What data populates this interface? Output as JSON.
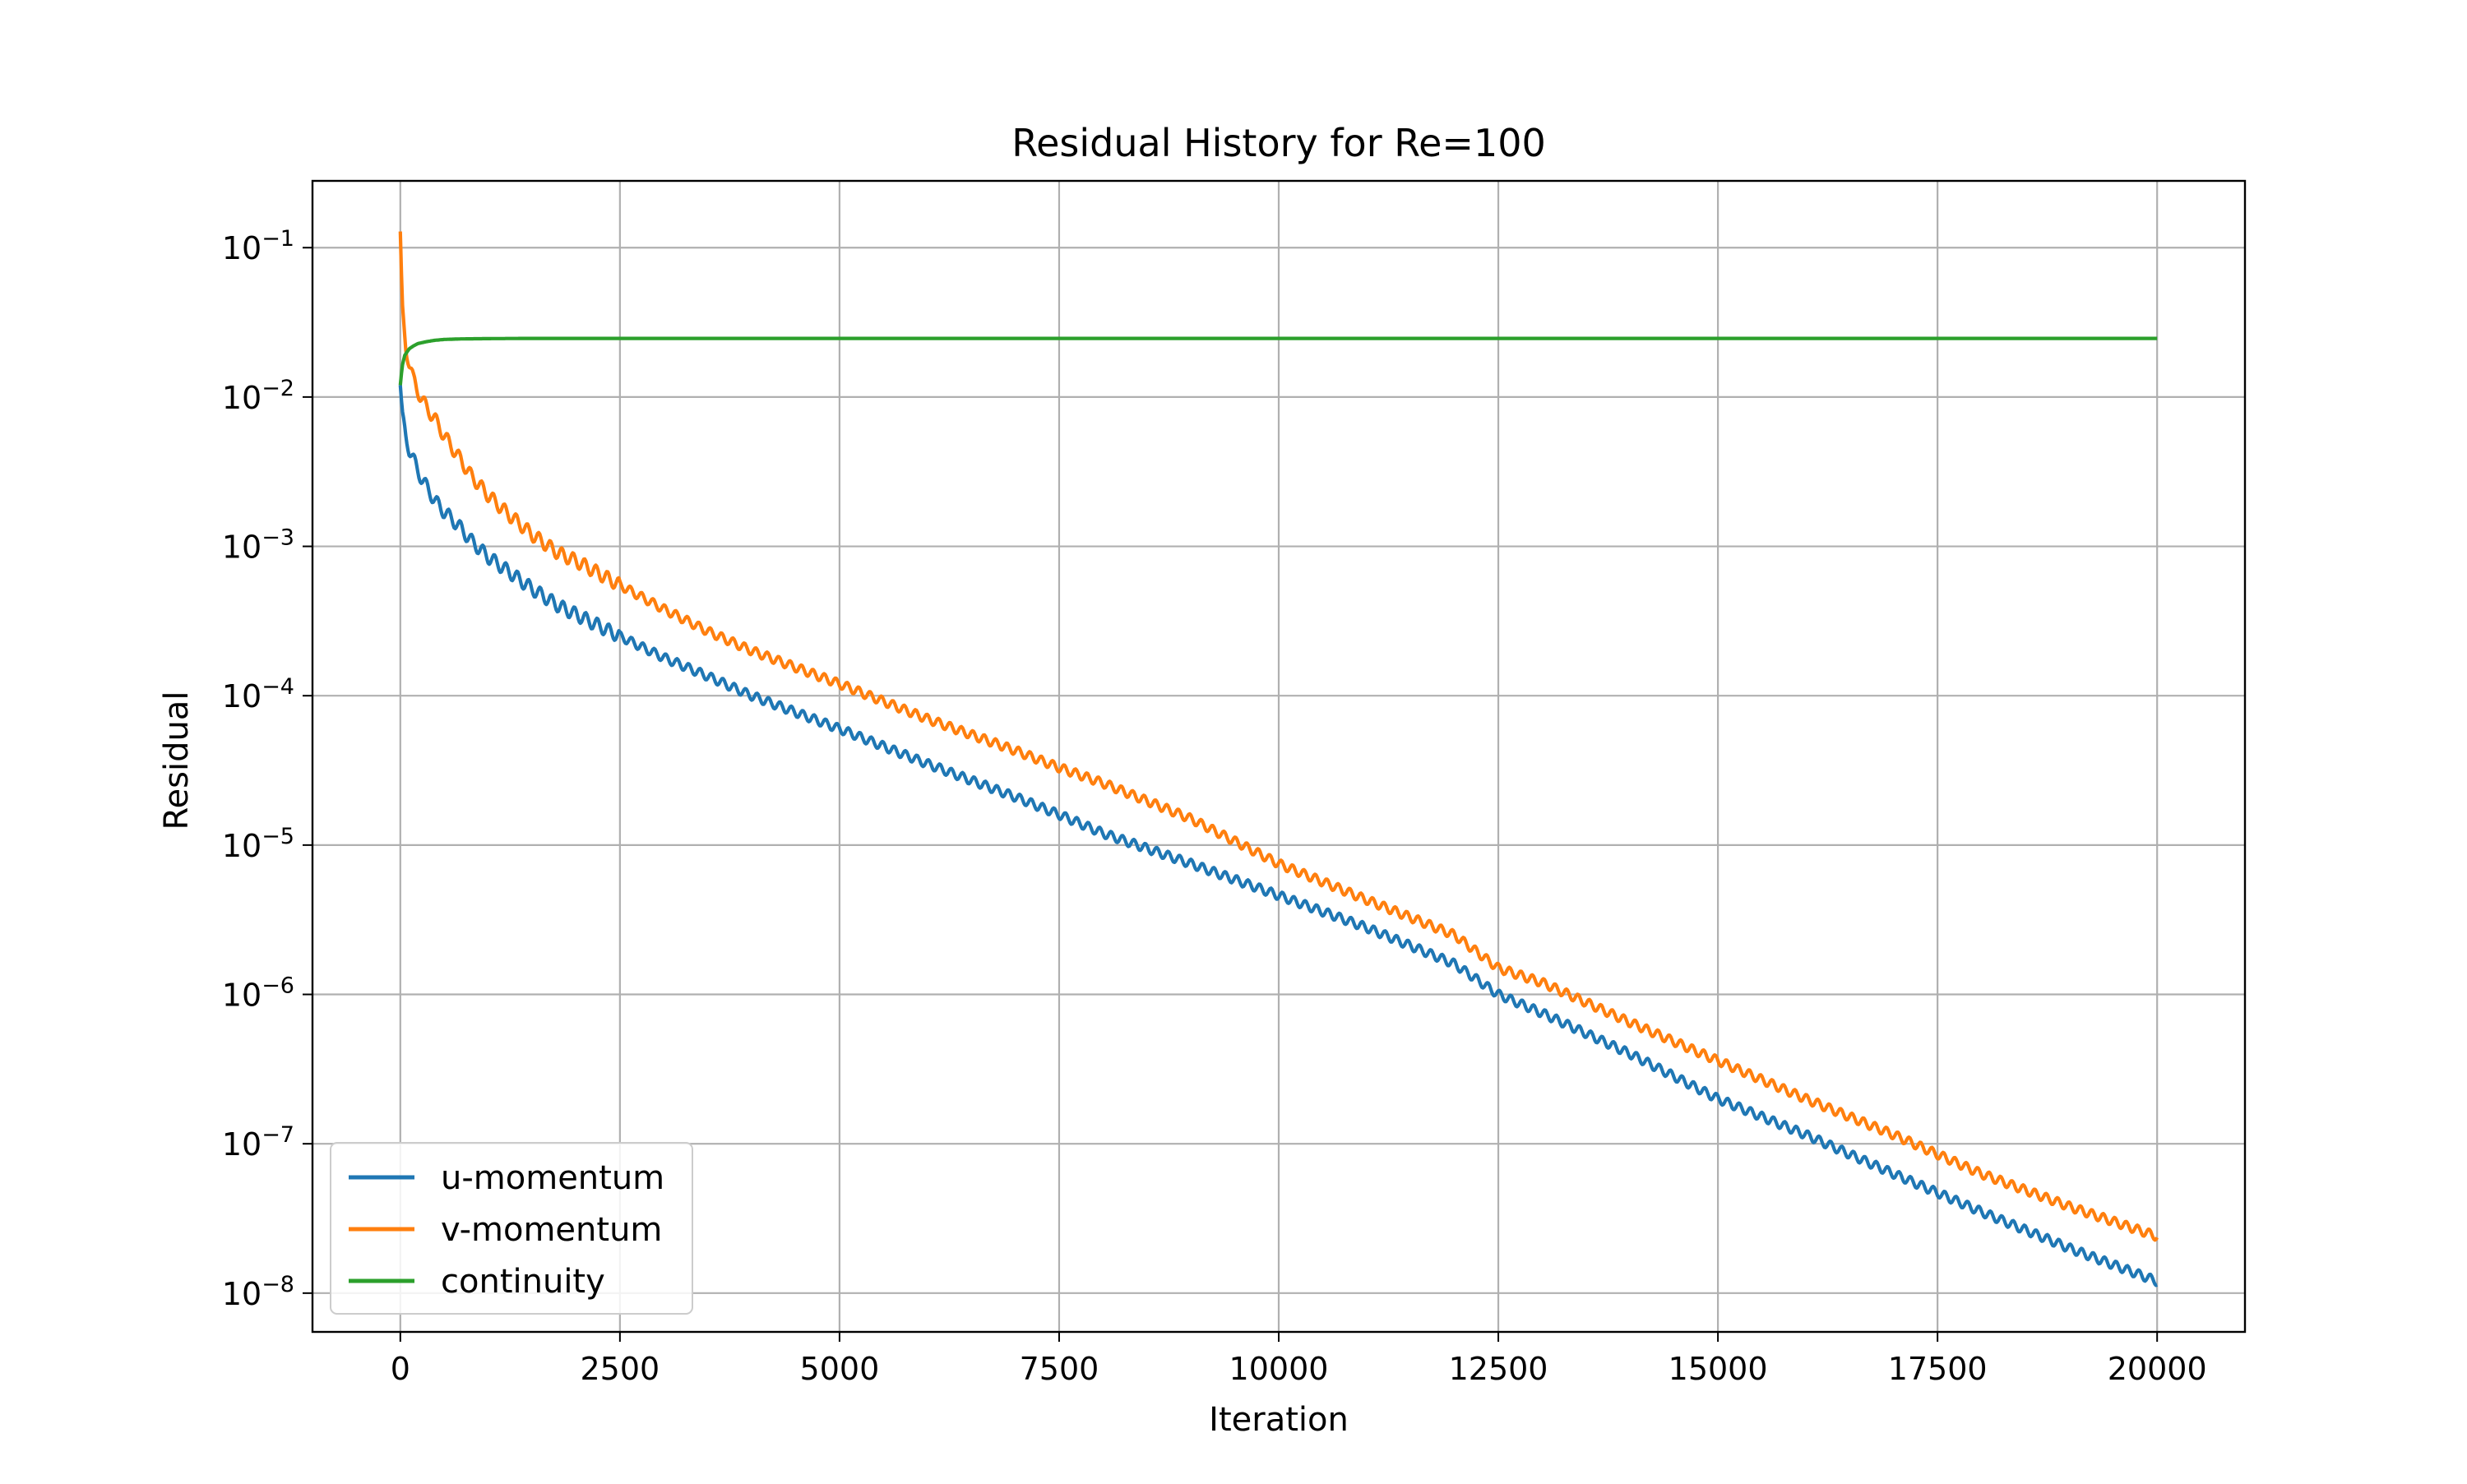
{
  "chart_data": {
    "type": "line",
    "title": "Residual History for Re=100",
    "xlabel": "Iteration",
    "ylabel": "Residual",
    "xlim": [
      -1000,
      21000
    ],
    "ylim": [
      5.5e-09,
      0.28
    ],
    "yscale": "log",
    "grid": true,
    "legend_position": "lower-left",
    "x_ticks": [
      0,
      2500,
      5000,
      7500,
      10000,
      12500,
      15000,
      17500,
      20000
    ],
    "x_tick_labels": [
      "0",
      "2500",
      "5000",
      "7500",
      "10000",
      "12500",
      "15000",
      "17500",
      "20000"
    ],
    "y_ticks": [
      0.1,
      0.01,
      0.001,
      0.0001,
      1e-05,
      1e-06,
      1e-07,
      1e-08
    ],
    "y_tick_labels": [
      {
        "base": "10",
        "exp": "−1"
      },
      {
        "base": "10",
        "exp": "−2"
      },
      {
        "base": "10",
        "exp": "−3"
      },
      {
        "base": "10",
        "exp": "−4"
      },
      {
        "base": "10",
        "exp": "−5"
      },
      {
        "base": "10",
        "exp": "−6"
      },
      {
        "base": "10",
        "exp": "−7"
      },
      {
        "base": "10",
        "exp": "−8"
      }
    ],
    "series": [
      {
        "name": "u-momentum",
        "color": "#1f77b4",
        "x": [
          0,
          20,
          60,
          100,
          150,
          200,
          250,
          300,
          400,
          500,
          600,
          700,
          800,
          1000,
          1200,
          1500,
          1800,
          2000,
          2500,
          3000,
          3500,
          4000,
          5000,
          6000,
          7000,
          7500,
          8000,
          9000,
          10000,
          11000,
          12000,
          12500,
          13000,
          14000,
          15000,
          16000,
          17000,
          17500,
          18000,
          19000,
          20000
        ],
        "y": [
          0.012,
          0.0075,
          0.0055,
          0.0045,
          0.0038,
          0.0032,
          0.0028,
          0.0025,
          0.002,
          0.0017,
          0.0015,
          0.0013,
          0.0011,
          0.00085,
          0.0007,
          0.00052,
          0.0004,
          0.00035,
          0.00025,
          0.00018,
          0.000135,
          0.0001,
          6e-05,
          3.5e-05,
          2.1e-05,
          1.6e-05,
          1.2e-05,
          7.5e-06,
          4.6e-06,
          2.8e-06,
          1.6e-06,
          1e-06,
          7.5e-07,
          4e-07,
          2e-07,
          1.15e-07,
          6.3e-08,
          4.7e-08,
          3.5e-08,
          2e-08,
          1.2e-08
        ]
      },
      {
        "name": "v-momentum",
        "color": "#ff7f0e",
        "x": [
          0,
          20,
          60,
          100,
          150,
          200,
          250,
          300,
          400,
          500,
          600,
          700,
          800,
          1000,
          1200,
          1500,
          1800,
          2000,
          2500,
          3000,
          3500,
          4000,
          5000,
          6000,
          7000,
          7500,
          8000,
          9000,
          10000,
          11000,
          12000,
          12500,
          13000,
          14000,
          15000,
          16000,
          17000,
          17500,
          18000,
          19000,
          20000
        ],
        "y": [
          0.12,
          0.04,
          0.022,
          0.017,
          0.013,
          0.011,
          0.0095,
          0.0085,
          0.007,
          0.0055,
          0.0045,
          0.0037,
          0.003,
          0.0022,
          0.0017,
          0.0012,
          0.0009,
          0.0008,
          0.00055,
          0.00038,
          0.00027,
          0.0002,
          0.00012,
          7e-05,
          4.3e-05,
          3.3e-05,
          2.6e-05,
          1.5e-05,
          7.5e-06,
          4.3e-06,
          2.5e-06,
          1.5e-06,
          1.2e-06,
          6.5e-07,
          3.6e-07,
          2e-07,
          1.15e-07,
          8.5e-08,
          6.3e-08,
          3.8e-08,
          2.4e-08
        ]
      },
      {
        "name": "continuity",
        "color": "#2ca02c",
        "x": [
          0,
          20,
          50,
          100,
          150,
          200,
          300,
          400,
          500,
          700,
          1000,
          1500,
          2000,
          3000,
          5000,
          10000,
          15000,
          20000
        ],
        "y": [
          0.012,
          0.016,
          0.019,
          0.021,
          0.022,
          0.0228,
          0.0235,
          0.024,
          0.0243,
          0.0245,
          0.0246,
          0.0247,
          0.0247,
          0.0247,
          0.0247,
          0.0247,
          0.0247,
          0.0247
        ]
      }
    ]
  }
}
